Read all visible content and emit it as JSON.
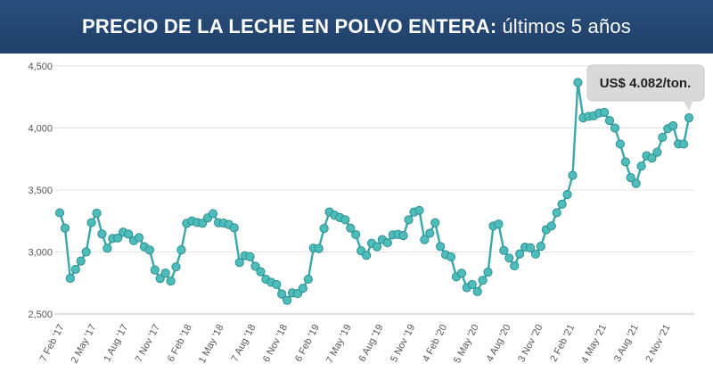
{
  "header": {
    "title_bold": "PRECIO DE LA LECHE EN POLVO ENTERA:",
    "title_rest": "últimos 5 años"
  },
  "colors": {
    "banner": "#24466f",
    "line": "#3aa8a8",
    "marker_fill": "#4dbdbc",
    "marker_stroke": "#2f8f8f",
    "callout": "#d9d9d9"
  },
  "chart_data": {
    "type": "line",
    "title": "PRECIO DE LA LECHE EN POLVO ENTERA: últimos 5 años",
    "xlabel": "",
    "ylabel": "",
    "ylim": [
      2500,
      4500
    ],
    "yticks": [
      2500,
      3000,
      3500,
      4000,
      4500
    ],
    "ytick_labels": [
      "2,500",
      "3,000",
      "3,500",
      "4,000",
      "4,500"
    ],
    "xtick_labels": [
      "7 Feb '17",
      "2 May '17",
      "1 Aug '17",
      "7 Nov '17",
      "6 Feb '18",
      "1 May '18",
      "7 Aug '18",
      "6 Nov '18",
      "6 Feb '19",
      "7 May '19",
      "6 Aug '19",
      "5 Nov '19",
      "4 Feb '20",
      "5 May '20",
      "4 Aug '20",
      "3 Nov '20",
      "2 Feb '21",
      "4 May '21",
      "3 Aug '21",
      "2 Nov '21"
    ],
    "grid": true,
    "legend": "none",
    "annotation": "US$ 4.082/ton.",
    "series": [
      {
        "values": [
          3316,
          3193,
          2788,
          2860,
          2927,
          3000,
          3237,
          3313,
          3145,
          3030,
          3109,
          3113,
          3160,
          3144,
          3092,
          3116,
          3042,
          3016,
          2855,
          2786,
          2830,
          2765,
          2880,
          3017,
          3231,
          3250,
          3238,
          3232,
          3275,
          3309,
          3236,
          3233,
          3221,
          3195,
          2915,
          2970,
          2962,
          2885,
          2841,
          2780,
          2756,
          2738,
          2661,
          2610,
          2670,
          2665,
          2707,
          2780,
          3031,
          3028,
          3190,
          3323,
          3297,
          3278,
          3260,
          3193,
          3140,
          3010,
          2973,
          3070,
          3042,
          3100,
          3075,
          3138,
          3142,
          3132,
          3260,
          3322,
          3336,
          3100,
          3151,
          3236,
          3044,
          2978,
          2961,
          2800,
          2828,
          2712,
          2738,
          2681,
          2772,
          2837,
          3210,
          3225,
          3012,
          2951,
          2888,
          2985,
          3039,
          3034,
          2984,
          3046,
          3180,
          3210,
          3317,
          3386,
          3463,
          3618,
          4367,
          4082,
          4093,
          4099,
          4120,
          4126,
          4060,
          4000,
          3871,
          3727,
          3600,
          3552,
          3693,
          3776,
          3757,
          3805,
          3925,
          3995,
          4018,
          3872,
          3870,
          4082
        ]
      }
    ]
  }
}
